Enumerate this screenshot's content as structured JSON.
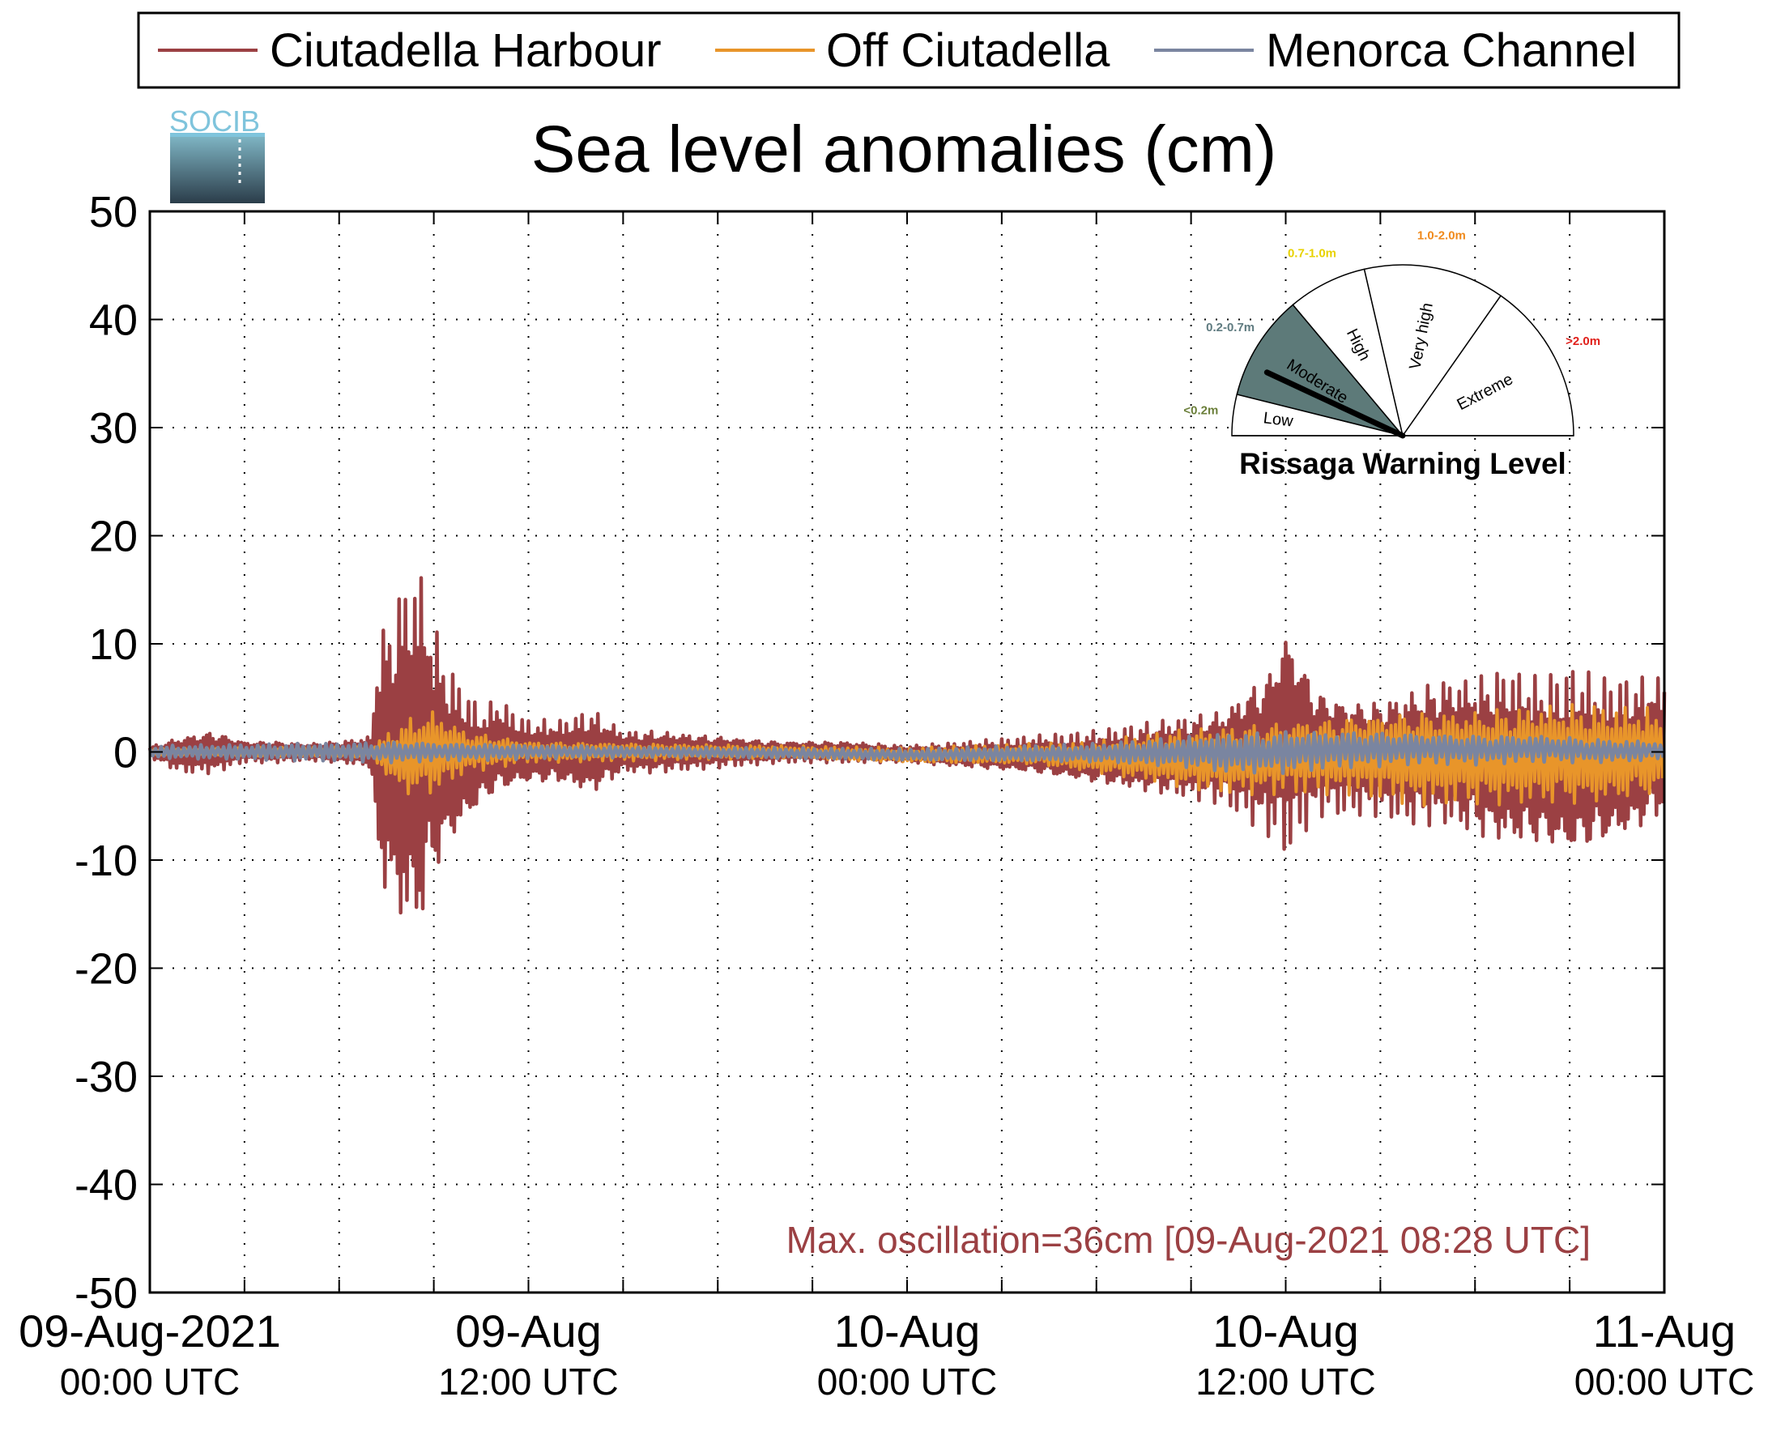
{
  "chart_data": {
    "type": "line",
    "title": "Sea level anomalies (cm)",
    "xlabel": "",
    "ylabel": "",
    "ylim": [
      -50,
      50
    ],
    "yticks": [
      "50",
      "40",
      "30",
      "20",
      "10",
      "0",
      "-10",
      "-20",
      "-30",
      "-40",
      "-50"
    ],
    "xlim": [
      "2021-08-09 00:00",
      "2021-08-11 00:00"
    ],
    "xticks": [
      {
        "date": "09-Aug-2021",
        "time": "00:00 UTC"
      },
      {
        "date": "09-Aug",
        "time": "12:00 UTC"
      },
      {
        "date": "10-Aug",
        "time": "00:00 UTC"
      },
      {
        "date": "10-Aug",
        "time": "12:00 UTC"
      },
      {
        "date": "11-Aug",
        "time": "00:00 UTC"
      }
    ],
    "grid": true,
    "legend_position": "top",
    "annotation": "Max. oscillation=36cm [09-Aug-2021 08:28 UTC]",
    "series": [
      {
        "name": "Ciutadella Harbour",
        "color": "#9b4043",
        "x_hours": [
          0,
          1,
          2,
          3,
          4,
          5,
          6,
          7,
          7.2,
          7.8,
          8.5,
          9,
          9.5,
          10,
          10.5,
          11,
          12,
          13,
          14,
          15,
          16,
          18,
          20,
          22,
          24,
          26,
          28,
          30,
          32,
          34,
          35.5,
          36,
          37,
          38,
          39,
          40,
          41,
          42,
          43,
          44,
          45,
          46,
          47,
          48
        ],
        "upper_cm": [
          0.5,
          1.5,
          2,
          1,
          1,
          0.8,
          1,
          1.5,
          10,
          15,
          18,
          12,
          8,
          6,
          4,
          5,
          3,
          3,
          4,
          2,
          2,
          1.5,
          1,
          1,
          0.6,
          1,
          1.5,
          2,
          3,
          4,
          8,
          12,
          6,
          5,
          5,
          6,
          7,
          7,
          8,
          7,
          8,
          7,
          7,
          7
        ],
        "lower_cm": [
          -0.5,
          -2,
          -2,
          -1,
          -1,
          -0.8,
          -1,
          -1.5,
          -11,
          -16,
          -18,
          -12,
          -9,
          -7,
          -5,
          -4,
          -3,
          -3,
          -4,
          -2,
          -2,
          -1.5,
          -1,
          -1,
          -1,
          -1.5,
          -2,
          -3,
          -4,
          -5,
          -8,
          -10,
          -6,
          -6,
          -6,
          -7,
          -7,
          -8,
          -9,
          -9,
          -10,
          -9,
          -8,
          -6
        ]
      },
      {
        "name": "Off Ciutadella",
        "color": "#e8952a",
        "x_hours": [
          0,
          7,
          8,
          9,
          10,
          12,
          16,
          20,
          24,
          28,
          30,
          32,
          34,
          36,
          38,
          40,
          42,
          44,
          46,
          48
        ],
        "upper_cm": [
          0.3,
          0.5,
          3,
          4,
          2,
          1,
          0.8,
          0.6,
          0.4,
          0.8,
          1,
          2,
          2.5,
          3,
          3.5,
          4,
          4,
          4.5,
          4.5,
          4
        ],
        "lower_cm": [
          -0.3,
          -0.5,
          -4,
          -4,
          -2,
          -1,
          -0.8,
          -0.6,
          -1,
          -1.2,
          -2,
          -3,
          -4,
          -4,
          -4,
          -5,
          -5,
          -5,
          -5,
          -4
        ]
      },
      {
        "name": "Menorca Channel",
        "color": "#7a85a0",
        "x_hours": [
          0,
          8,
          10,
          16,
          24,
          30,
          33,
          34,
          36,
          38,
          40,
          42,
          44,
          46,
          48
        ],
        "upper_cm": [
          0.6,
          1,
          0.8,
          0.5,
          0.3,
          0.8,
          1.5,
          1.8,
          2,
          2,
          1.8,
          1.6,
          1.6,
          1.2,
          1
        ],
        "lower_cm": [
          -0.6,
          -1,
          -0.8,
          -0.5,
          -0.8,
          -1,
          -1.5,
          -2,
          -2,
          -1.5,
          -1.2,
          -1.2,
          -1.0,
          -1.0,
          -0.8
        ]
      }
    ]
  },
  "gauge": {
    "title": "Rissaga Warning Level",
    "current_level": "Moderate",
    "needle_angle_deg": 155,
    "sectors": [
      {
        "label": "Low",
        "range": "<0.2m",
        "range_color": "#6b7f3a",
        "from_deg": 180,
        "to_deg": 166
      },
      {
        "label": "Moderate",
        "range": "0.2-0.7m",
        "range_color": "#5f7b80",
        "from_deg": 166,
        "to_deg": 130
      },
      {
        "label": "High",
        "range": "0.7-1.0m",
        "range_color": "#e8d200",
        "from_deg": 130,
        "to_deg": 103
      },
      {
        "label": "Very high",
        "range": "1.0-2.0m",
        "range_color": "#f08a1c",
        "from_deg": 103,
        "to_deg": 55
      },
      {
        "label": "Extreme",
        "range": ">2.0m",
        "range_color": "#e0201b",
        "from_deg": 55,
        "to_deg": 0
      }
    ],
    "highlight_color": "#5d7a79"
  },
  "logo": {
    "text": "SOCIB"
  }
}
